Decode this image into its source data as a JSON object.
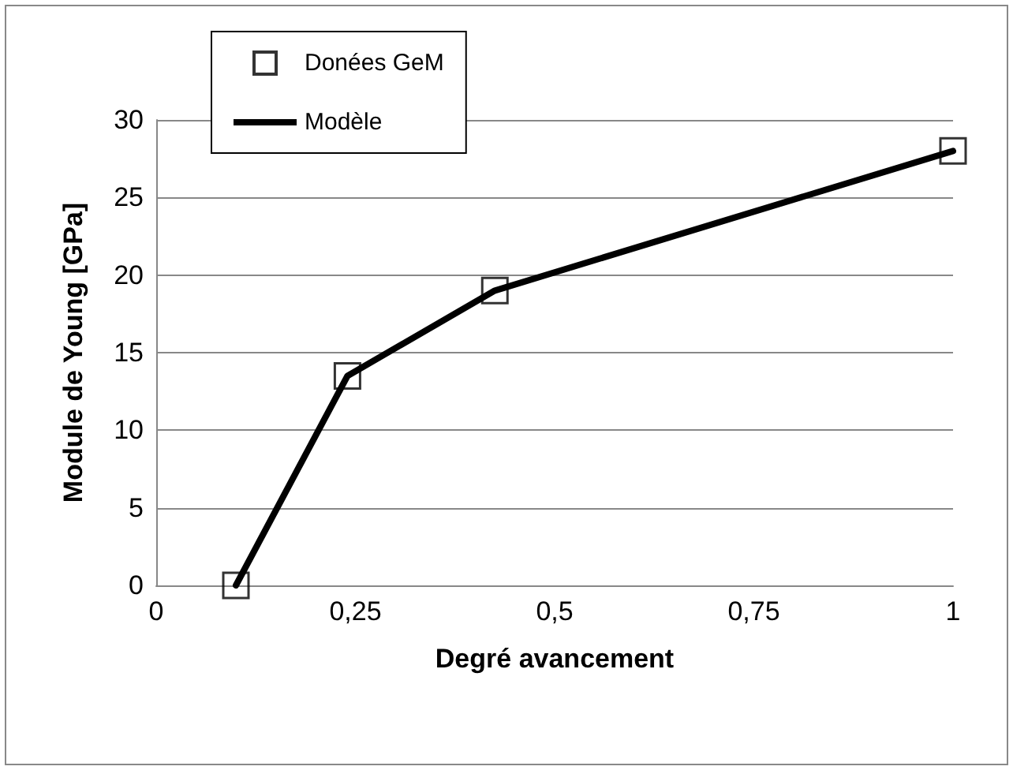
{
  "chart_data": {
    "type": "line",
    "xlabel": "Degré avancement",
    "ylabel": "Module de Young [GPa]",
    "xlim": [
      0,
      1
    ],
    "xticks": [
      0,
      {
        "value": 0.25,
        "label": "0,25"
      },
      {
        "value": 0.5,
        "label": "0,5"
      },
      {
        "value": 0.75,
        "label": "0,75"
      },
      1
    ],
    "ylim": [
      0,
      30
    ],
    "yticks": [
      0,
      5,
      10,
      15,
      20,
      25,
      30
    ],
    "grid": "y",
    "legend": "top left",
    "series": [
      {
        "name": "Donées GeM",
        "type": "scatter",
        "marker": "square",
        "color": "#000000",
        "x": [
          0.1,
          0.24,
          0.425,
          1
        ],
        "values": [
          0,
          13.5,
          19,
          28
        ]
      },
      {
        "name": "Modèle",
        "marker": "none",
        "line_style": "solid",
        "color": "#000000",
        "x": [
          0.1,
          0.24,
          0.425,
          1
        ],
        "values": [
          0,
          13.5,
          19,
          28
        ]
      }
    ]
  }
}
